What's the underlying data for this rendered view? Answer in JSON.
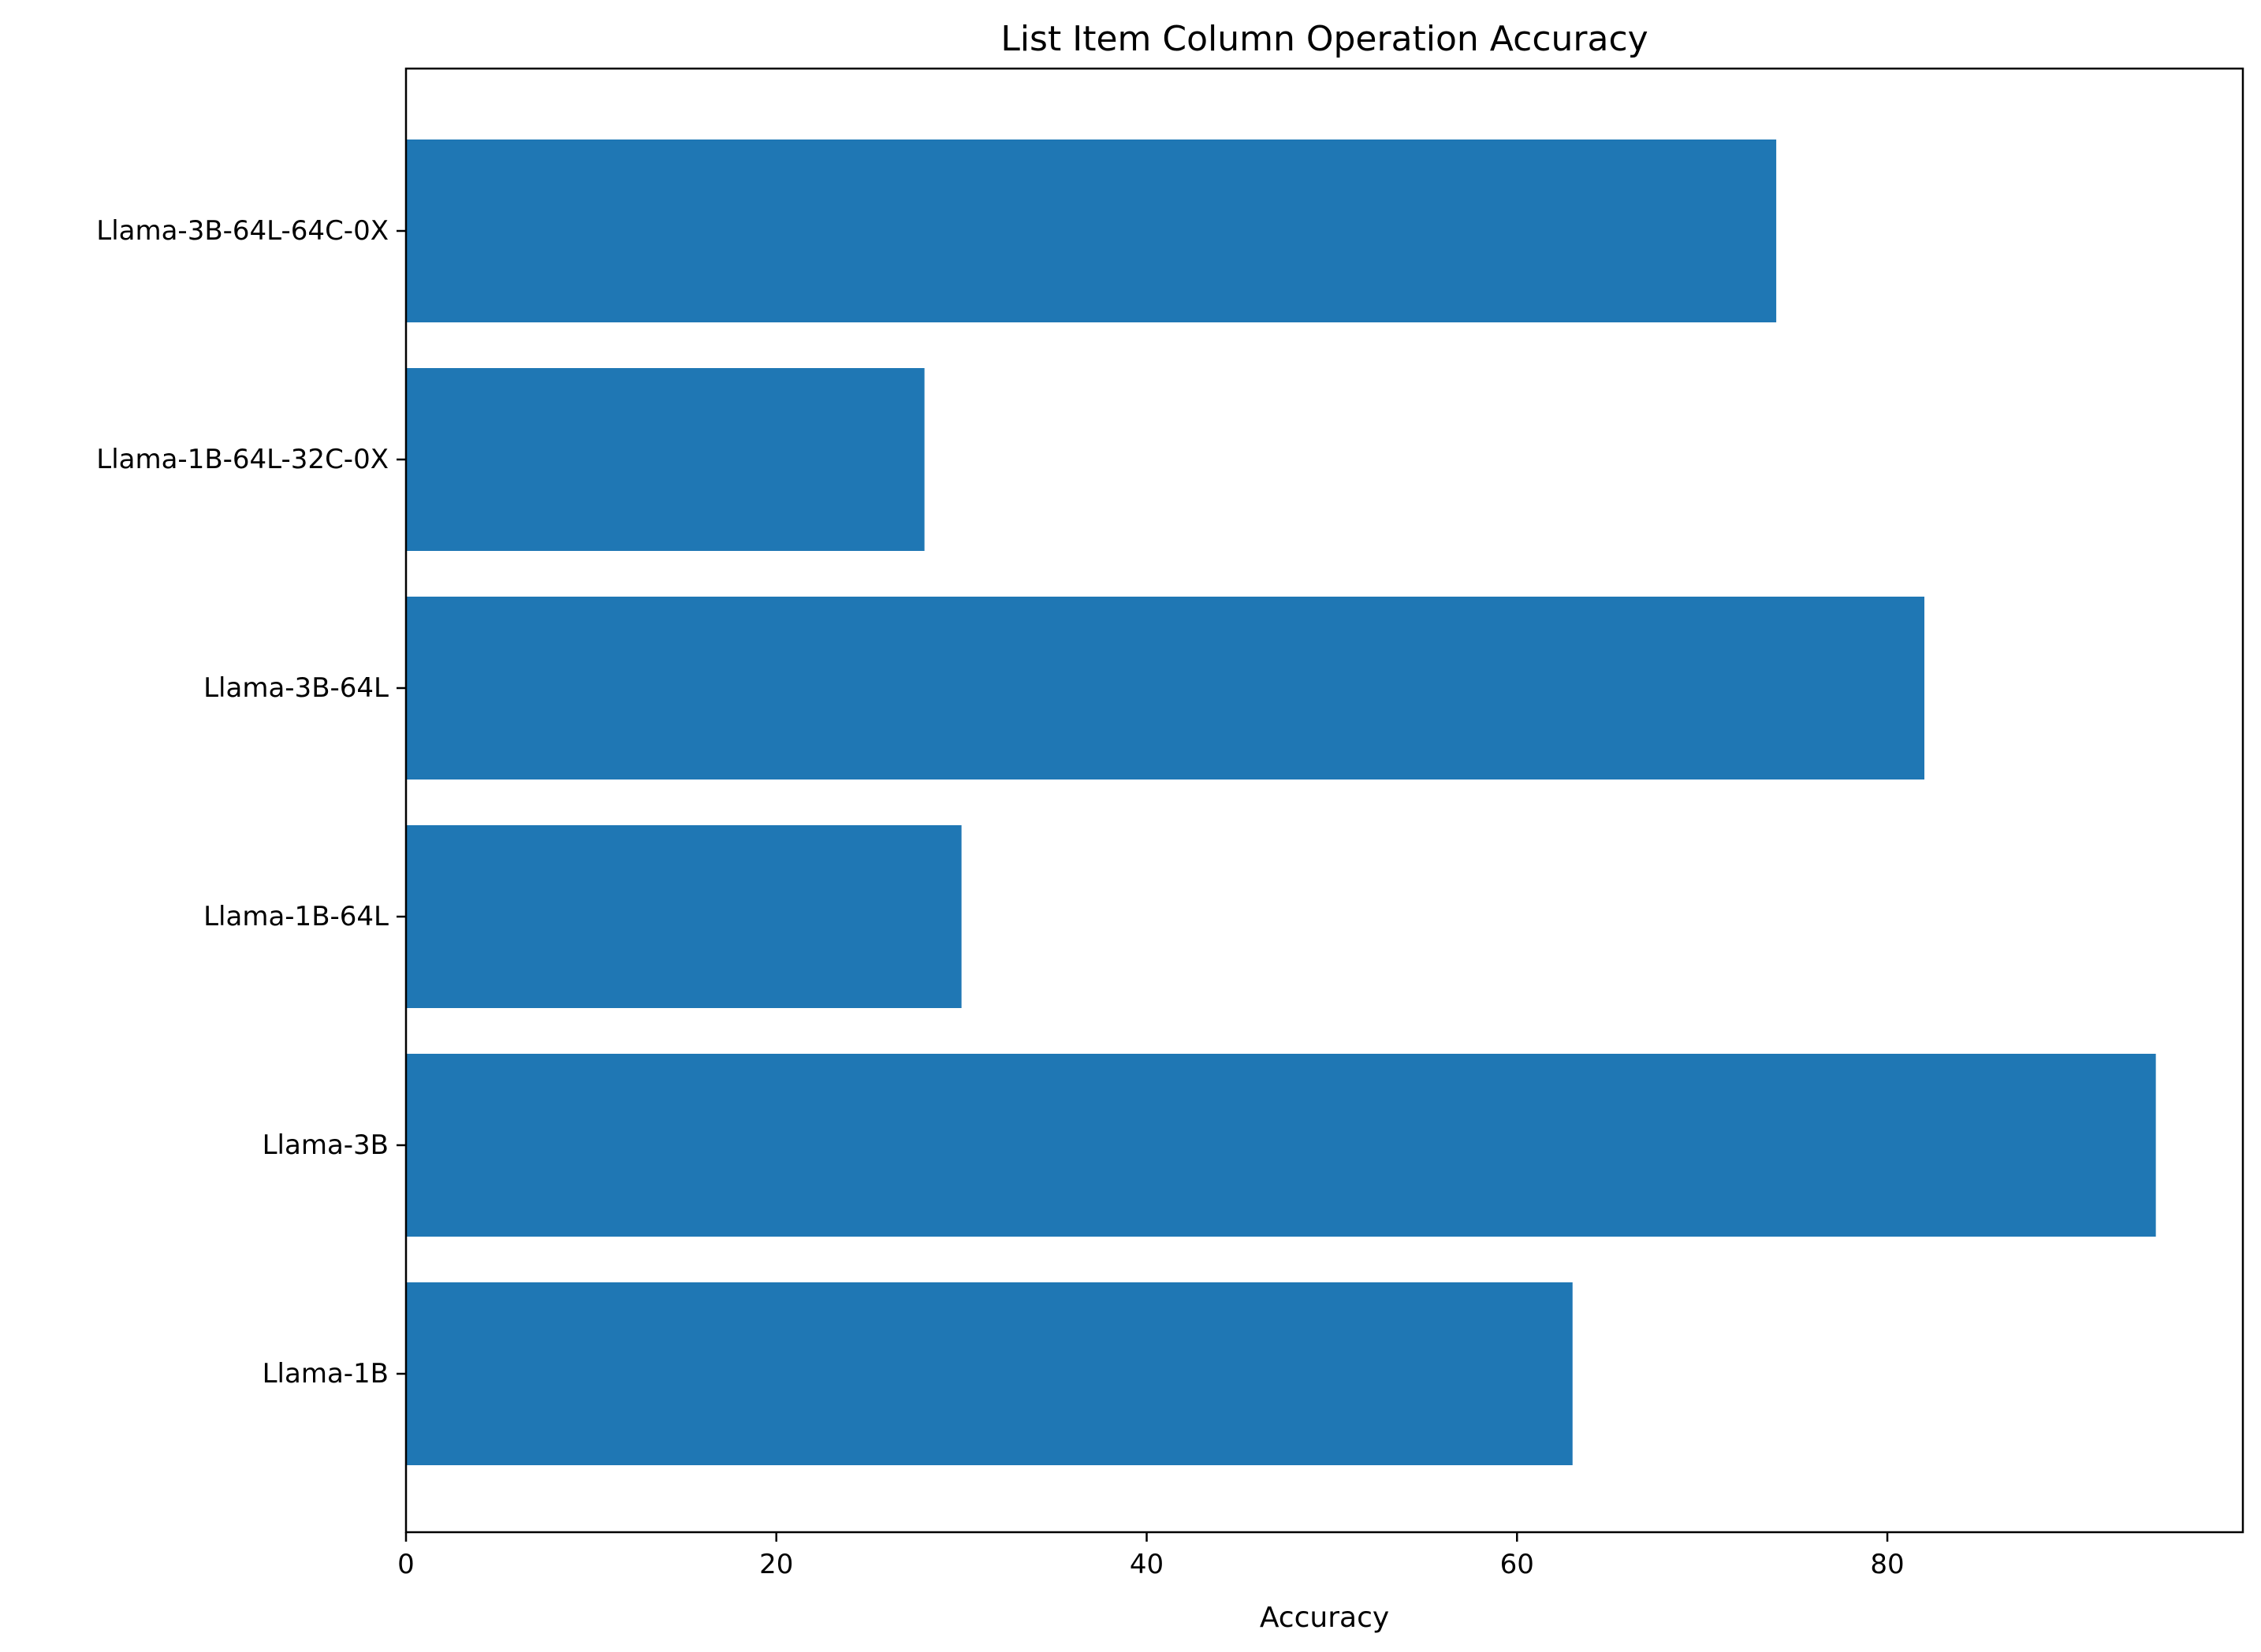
{
  "chart_data": {
    "type": "bar",
    "orientation": "horizontal",
    "title": "List Item Column Operation Accuracy",
    "xlabel": "Accuracy",
    "ylabel": "",
    "categories": [
      "Llama-1B",
      "Llama-3B",
      "Llama-1B-64L",
      "Llama-3B-64L",
      "Llama-1B-64L-32C-0X",
      "Llama-3B-64L-64C-0X"
    ],
    "values": [
      63,
      94.5,
      30,
      82,
      28,
      74
    ],
    "xlim": [
      0,
      99.2
    ],
    "xticks": [
      0,
      20,
      40,
      60,
      80
    ],
    "xtick_labels": [
      "0",
      "20",
      "40",
      "60",
      "80"
    ],
    "bar_color": "#1f77b4",
    "grid": false,
    "legend": "none"
  }
}
